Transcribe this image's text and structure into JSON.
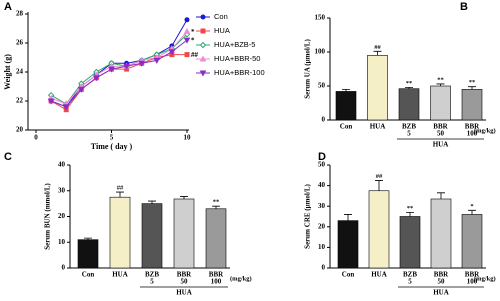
{
  "chart_data": [
    {
      "type": "line",
      "label": "A",
      "x_label": "Time ( day )",
      "y_label": "Weight (g)",
      "xlim": [
        0,
        10
      ],
      "xticks": [
        0,
        5,
        10
      ],
      "ylim": [
        20,
        28
      ],
      "yticks": [
        20,
        22,
        24,
        26,
        28
      ],
      "x": [
        1,
        2,
        3,
        4,
        5,
        6,
        7,
        8,
        9,
        10
      ],
      "series": [
        {
          "name": "Con",
          "color": "#1a1ad6",
          "marker": "circle",
          "values": [
            22.0,
            21.6,
            23.0,
            23.8,
            24.6,
            24.6,
            24.8,
            25.2,
            25.8,
            27.6
          ]
        },
        {
          "name": "HUA",
          "color": "#f04848",
          "marker": "square",
          "end_label": "##",
          "values": [
            22.0,
            21.4,
            22.8,
            23.6,
            24.2,
            24.2,
            24.6,
            25.0,
            25.2,
            25.2
          ]
        },
        {
          "name": "HUA+BZB-5",
          "color": "#2ca86a",
          "marker": "diamond",
          "values": [
            22.4,
            21.8,
            23.2,
            24.0,
            24.6,
            24.4,
            24.8,
            25.2,
            25.6,
            26.6
          ]
        },
        {
          "name": "HUA+BBR-50",
          "color": "#f08ad8",
          "marker": "triangle",
          "end_label": "*",
          "values": [
            22.2,
            21.8,
            23.0,
            23.8,
            24.4,
            24.4,
            24.8,
            25.0,
            25.6,
            26.8
          ]
        },
        {
          "name": "HUA+BBR-100",
          "color": "#8a2bc8",
          "marker": "triangle-down",
          "end_label": "*",
          "values": [
            22.0,
            21.6,
            22.8,
            23.6,
            24.2,
            24.4,
            24.6,
            24.8,
            25.4,
            26.2
          ]
        }
      ]
    },
    {
      "type": "bar",
      "label": "B",
      "y_label": "Serum UA (μmol/L)",
      "ylim": [
        0,
        150
      ],
      "yticks": [
        0,
        50,
        100,
        150
      ],
      "categories": [
        "Con",
        "HUA",
        "BZB",
        "BBR",
        "BBR"
      ],
      "category_sublabels": [
        null,
        null,
        "5",
        "50",
        "100"
      ],
      "unit_label": "(mg/kg)",
      "group_label": "HUA",
      "colors": [
        "#111111",
        "#f5efc8",
        "#555555",
        "#cfcfcf",
        "#9a9a9a"
      ],
      "values": [
        42,
        95,
        46,
        50,
        45
      ],
      "errors": [
        3,
        6,
        2,
        3,
        4
      ],
      "annotations": [
        null,
        "##",
        "**",
        "**",
        "**"
      ]
    },
    {
      "type": "bar",
      "label": "C",
      "y_label": "Serum BUN (mmol/L)",
      "ylim": [
        0,
        40
      ],
      "yticks": [
        0,
        10,
        20,
        30,
        40
      ],
      "categories": [
        "Con",
        "HUA",
        "BZB",
        "BBR",
        "BBR"
      ],
      "category_sublabels": [
        null,
        null,
        "5",
        "50",
        "100"
      ],
      "unit_label": "(mg/kg)",
      "group_label": "HUA",
      "colors": [
        "#111111",
        "#f5efc8",
        "#555555",
        "#cfcfcf",
        "#9a9a9a"
      ],
      "values": [
        11,
        27.5,
        25,
        26.8,
        23
      ],
      "errors": [
        0.6,
        2,
        1,
        1,
        1
      ],
      "annotations": [
        null,
        "##",
        null,
        null,
        "**"
      ]
    },
    {
      "type": "bar",
      "label": "D",
      "y_label": "Serum CRE (μmol/L)",
      "ylim": [
        0,
        50
      ],
      "yticks": [
        0,
        10,
        20,
        30,
        40,
        50
      ],
      "categories": [
        "Con",
        "HUA",
        "BZB",
        "BBR",
        "BBR"
      ],
      "category_sublabels": [
        null,
        null,
        "5",
        "50",
        "100"
      ],
      "unit_label": "(mg/kg)",
      "group_label": "HUA",
      "colors": [
        "#111111",
        "#f5efc8",
        "#555555",
        "#cfcfcf",
        "#9a9a9a"
      ],
      "values": [
        23,
        37.5,
        25,
        33.5,
        26
      ],
      "errors": [
        3,
        5,
        2,
        3,
        2
      ],
      "annotations": [
        null,
        "##",
        "**",
        null,
        "*"
      ]
    }
  ]
}
